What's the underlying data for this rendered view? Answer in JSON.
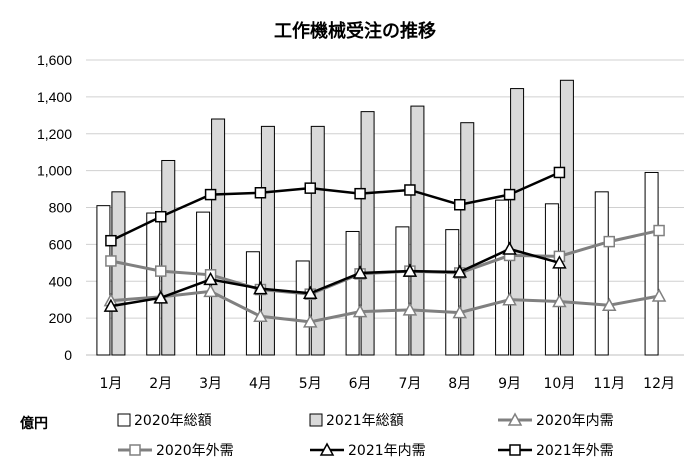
{
  "chart_data": {
    "type": "bar",
    "title": "工作機械受注の推移",
    "unit_label": "億円",
    "categories": [
      "1月",
      "2月",
      "3月",
      "4月",
      "5月",
      "6月",
      "7月",
      "8月",
      "9月",
      "10月",
      "11月",
      "12月"
    ],
    "ylim": [
      0,
      1600
    ],
    "yticks": [
      0,
      200,
      400,
      600,
      800,
      1000,
      1200,
      1400,
      1600
    ],
    "ytick_labels": [
      "0",
      "200",
      "400",
      "600",
      "800",
      "1,000",
      "1,200",
      "1,400",
      "1,600"
    ],
    "grid": true,
    "legend_position": "bottom",
    "bar_series": [
      {
        "name": "2020年総額",
        "color": "#ffffff",
        "stroke": "#000000",
        "values": [
          810,
          770,
          775,
          560,
          510,
          670,
          695,
          680,
          840,
          820,
          885,
          990
        ]
      },
      {
        "name": "2021年総額",
        "color": "#d9d9d9",
        "stroke": "#000000",
        "values": [
          885,
          1055,
          1280,
          1240,
          1240,
          1320,
          1350,
          1260,
          1445,
          1490,
          null,
          null
        ]
      }
    ],
    "line_series": [
      {
        "name": "2020年内需",
        "color": "#808080",
        "marker": "triangle",
        "values": [
          295,
          315,
          345,
          210,
          180,
          235,
          245,
          230,
          300,
          290,
          270,
          320
        ]
      },
      {
        "name": "2020年外需",
        "color": "#808080",
        "marker": "square",
        "values": [
          510,
          455,
          435,
          355,
          330,
          440,
          455,
          445,
          540,
          535,
          615,
          675
        ]
      },
      {
        "name": "2021年内需",
        "color": "#000000",
        "marker": "triangle",
        "values": [
          265,
          310,
          410,
          360,
          335,
          445,
          455,
          450,
          575,
          500,
          null,
          null
        ]
      },
      {
        "name": "2021年外需",
        "color": "#000000",
        "marker": "square",
        "values": [
          620,
          750,
          870,
          880,
          905,
          875,
          895,
          815,
          870,
          990,
          null,
          null
        ]
      }
    ]
  }
}
